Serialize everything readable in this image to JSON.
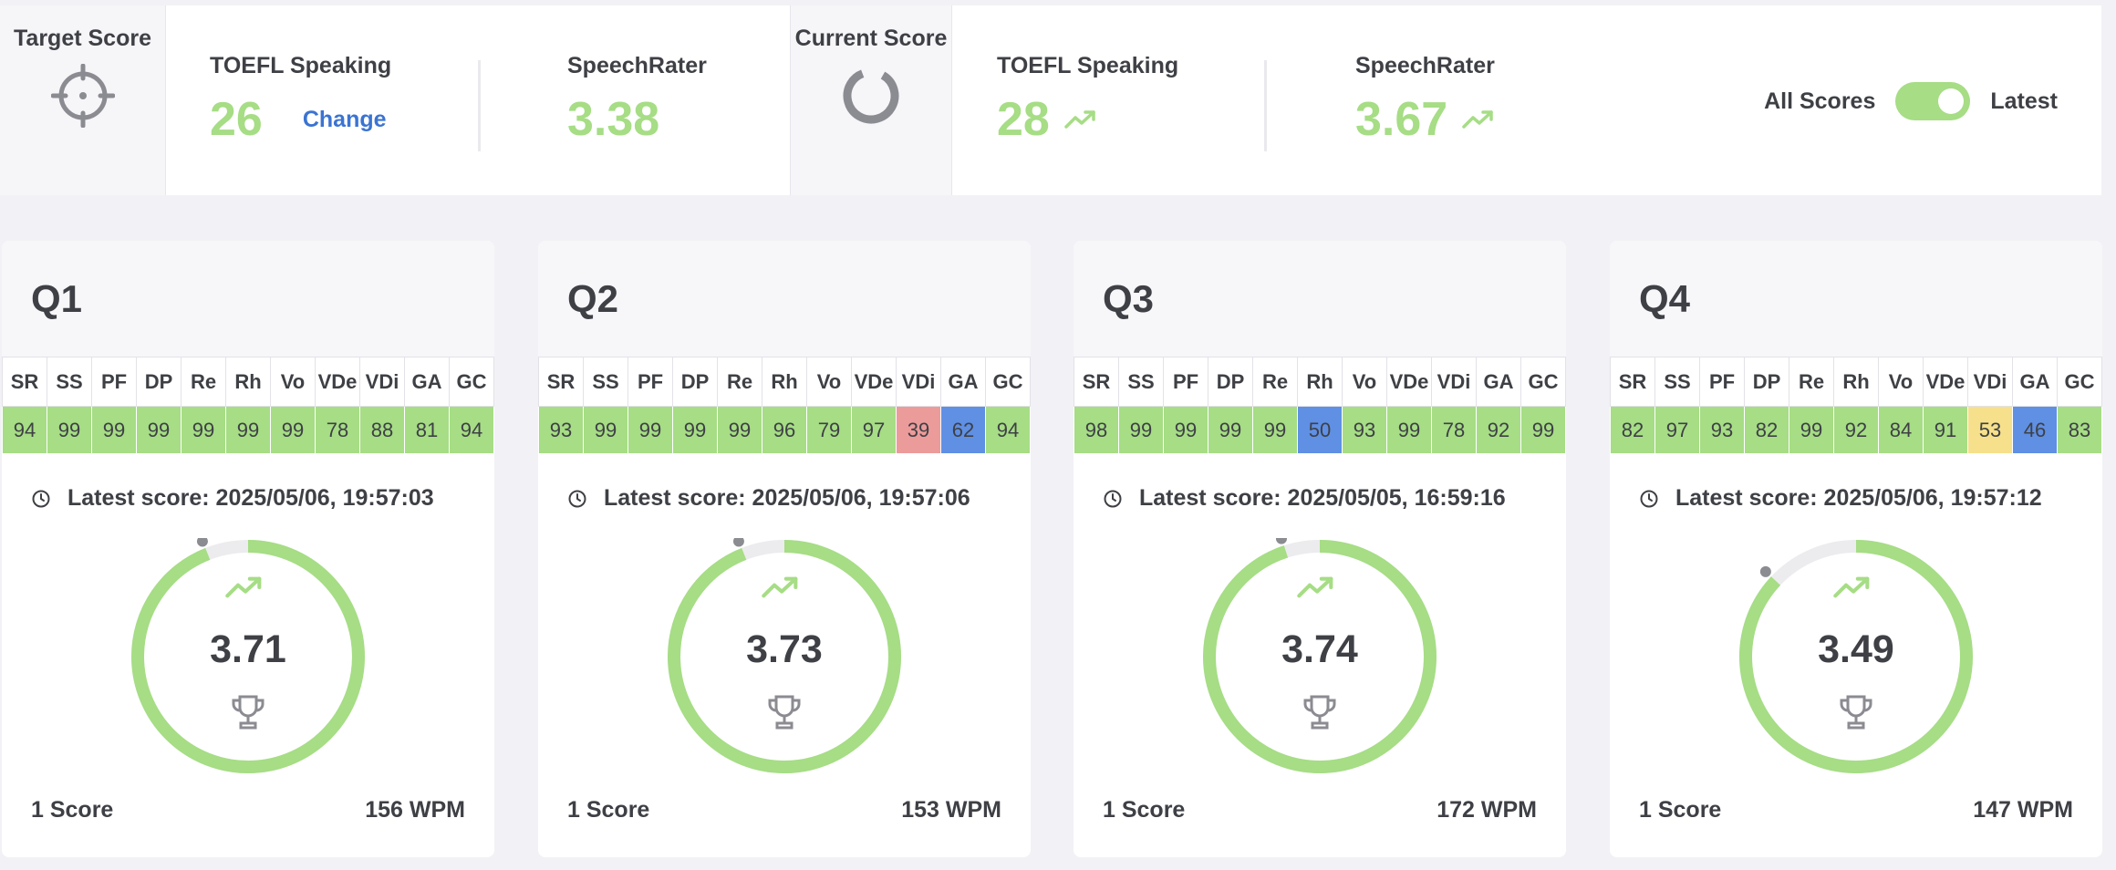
{
  "header": {
    "target_label": "Target Score",
    "current_label": "Current Score",
    "target": {
      "toefl_label": "TOEFL Speaking",
      "toefl_value": "26",
      "change_label": "Change",
      "sr_label": "SpeechRater",
      "sr_value": "3.38"
    },
    "current": {
      "toefl_label": "TOEFL Speaking",
      "toefl_value": "28",
      "sr_label": "SpeechRater",
      "sr_value": "3.67"
    },
    "toggle": {
      "left_label": "All Scores",
      "right_label": "Latest",
      "state": "Latest"
    }
  },
  "columns": [
    "SR",
    "SS",
    "PF",
    "DP",
    "Re",
    "Rh",
    "Vo",
    "VDe",
    "VDi",
    "GA",
    "GC"
  ],
  "colors": {
    "green": "#a6dd85",
    "red": "#ec9b9b",
    "blue": "#5f90e4",
    "yellow": "#f6e08b",
    "ring_track": "#ececee",
    "dot": "#8b8b92"
  },
  "cards": [
    {
      "title": "Q1",
      "values": [
        "94",
        "99",
        "99",
        "99",
        "99",
        "99",
        "99",
        "78",
        "88",
        "81",
        "94"
      ],
      "value_colors": [
        "green",
        "green",
        "green",
        "green",
        "green",
        "green",
        "green",
        "green",
        "green",
        "green",
        "green"
      ],
      "latest": "Latest score: 2025/05/06, 19:57:03",
      "score": "3.71",
      "ring_fraction": 0.94,
      "count": "1 Score",
      "wpm": "156 WPM"
    },
    {
      "title": "Q2",
      "values": [
        "93",
        "99",
        "99",
        "99",
        "99",
        "96",
        "79",
        "97",
        "39",
        "62",
        "94"
      ],
      "value_colors": [
        "green",
        "green",
        "green",
        "green",
        "green",
        "green",
        "green",
        "green",
        "red",
        "blue",
        "green"
      ],
      "latest": "Latest score: 2025/05/06, 19:57:06",
      "score": "3.73",
      "ring_fraction": 0.94,
      "count": "1 Score",
      "wpm": "153 WPM"
    },
    {
      "title": "Q3",
      "values": [
        "98",
        "99",
        "99",
        "99",
        "99",
        "50",
        "93",
        "99",
        "78",
        "92",
        "99"
      ],
      "value_colors": [
        "green",
        "green",
        "green",
        "green",
        "green",
        "blue",
        "green",
        "green",
        "green",
        "green",
        "green"
      ],
      "latest": "Latest score: 2025/05/05, 16:59:16",
      "score": "3.74",
      "ring_fraction": 0.95,
      "count": "1 Score",
      "wpm": "172 WPM"
    },
    {
      "title": "Q4",
      "values": [
        "82",
        "97",
        "93",
        "82",
        "99",
        "92",
        "84",
        "91",
        "53",
        "46",
        "83"
      ],
      "value_colors": [
        "green",
        "green",
        "green",
        "green",
        "green",
        "green",
        "green",
        "green",
        "yellow",
        "blue",
        "green"
      ],
      "latest": "Latest score: 2025/05/06, 19:57:12",
      "score": "3.49",
      "ring_fraction": 0.87,
      "count": "1 Score",
      "wpm": "147 WPM"
    }
  ]
}
